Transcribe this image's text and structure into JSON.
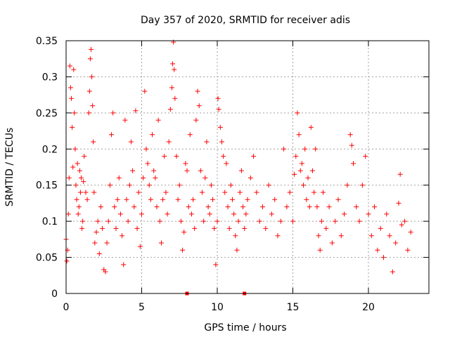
{
  "chart_data": {
    "type": "scatter",
    "title": "Day 357 of 2020, SRMTID for receiver adis",
    "xlabel": "GPS time / hours",
    "ylabel": "SRMTID / TECUs",
    "xlim": [
      0,
      24
    ],
    "ylim": [
      0,
      0.35
    ],
    "xticks": [
      0,
      5,
      10,
      15,
      20
    ],
    "xtick_labels": [
      "0",
      "5",
      "10",
      "15",
      "20"
    ],
    "yticks": [
      0,
      0.05,
      0.1,
      0.15,
      0.2,
      0.25,
      0.3,
      0.35
    ],
    "ytick_labels": [
      "0",
      "0.05",
      "0.1",
      "0.15",
      "0.2",
      "0.25",
      "0.3",
      "0.35"
    ],
    "grid": true,
    "marker": "+",
    "color": "#ff0000",
    "axis_markers": [
      8.0,
      11.8
    ],
    "series": [
      {
        "name": "SRMTID",
        "points": [
          [
            0.0,
            0.075
          ],
          [
            0.05,
            0.045
          ],
          [
            0.1,
            0.06
          ],
          [
            0.15,
            0.11
          ],
          [
            0.2,
            0.16
          ],
          [
            0.25,
            0.315
          ],
          [
            0.3,
            0.285
          ],
          [
            0.35,
            0.27
          ],
          [
            0.4,
            0.23
          ],
          [
            0.45,
            0.175
          ],
          [
            0.5,
            0.31
          ],
          [
            0.55,
            0.25
          ],
          [
            0.6,
            0.2
          ],
          [
            0.65,
            0.15
          ],
          [
            0.7,
            0.13
          ],
          [
            0.75,
            0.18
          ],
          [
            0.8,
            0.11
          ],
          [
            0.85,
            0.12
          ],
          [
            0.9,
            0.17
          ],
          [
            0.95,
            0.14
          ],
          [
            1.0,
            0.16
          ],
          [
            1.05,
            0.09
          ],
          [
            1.1,
            0.1
          ],
          [
            1.15,
            0.155
          ],
          [
            1.2,
            0.19
          ],
          [
            1.3,
            0.14
          ],
          [
            1.4,
            0.13
          ],
          [
            1.5,
            0.25
          ],
          [
            1.55,
            0.28
          ],
          [
            1.6,
            0.325
          ],
          [
            1.65,
            0.338
          ],
          [
            1.7,
            0.3
          ],
          [
            1.75,
            0.26
          ],
          [
            1.8,
            0.21
          ],
          [
            1.85,
            0.14
          ],
          [
            1.9,
            0.07
          ],
          [
            2.0,
            0.085
          ],
          [
            2.1,
            0.1
          ],
          [
            2.2,
            0.055
          ],
          [
            2.3,
            0.12
          ],
          [
            2.4,
            0.09
          ],
          [
            2.5,
            0.033
          ],
          [
            2.6,
            0.03
          ],
          [
            2.7,
            0.07
          ],
          [
            2.8,
            0.1
          ],
          [
            2.9,
            0.15
          ],
          [
            3.0,
            0.22
          ],
          [
            3.1,
            0.25
          ],
          [
            3.2,
            0.12
          ],
          [
            3.3,
            0.09
          ],
          [
            3.4,
            0.13
          ],
          [
            3.5,
            0.16
          ],
          [
            3.6,
            0.11
          ],
          [
            3.7,
            0.08
          ],
          [
            3.8,
            0.04
          ],
          [
            3.9,
            0.24
          ],
          [
            4.0,
            0.13
          ],
          [
            4.1,
            0.1
          ],
          [
            4.2,
            0.15
          ],
          [
            4.3,
            0.21
          ],
          [
            4.4,
            0.17
          ],
          [
            4.5,
            0.12
          ],
          [
            4.6,
            0.253
          ],
          [
            4.7,
            0.09
          ],
          [
            4.8,
            0.14
          ],
          [
            4.9,
            0.065
          ],
          [
            5.0,
            0.11
          ],
          [
            5.1,
            0.16
          ],
          [
            5.2,
            0.28
          ],
          [
            5.3,
            0.2
          ],
          [
            5.4,
            0.18
          ],
          [
            5.5,
            0.15
          ],
          [
            5.6,
            0.13
          ],
          [
            5.7,
            0.22
          ],
          [
            5.8,
            0.17
          ],
          [
            5.9,
            0.16
          ],
          [
            6.0,
            0.12
          ],
          [
            6.1,
            0.24
          ],
          [
            6.2,
            0.1
          ],
          [
            6.3,
            0.07
          ],
          [
            6.4,
            0.13
          ],
          [
            6.5,
            0.19
          ],
          [
            6.6,
            0.14
          ],
          [
            6.7,
            0.11
          ],
          [
            6.8,
            0.21
          ],
          [
            6.9,
            0.255
          ],
          [
            7.0,
            0.285
          ],
          [
            7.05,
            0.318
          ],
          [
            7.1,
            0.348
          ],
          [
            7.15,
            0.31
          ],
          [
            7.2,
            0.27
          ],
          [
            7.3,
            0.19
          ],
          [
            7.4,
            0.13
          ],
          [
            7.5,
            0.15
          ],
          [
            7.6,
            0.1
          ],
          [
            7.7,
            0.06
          ],
          [
            7.8,
            0.085
          ],
          [
            7.9,
            0.18
          ],
          [
            8.0,
            0.17
          ],
          [
            8.1,
            0.12
          ],
          [
            8.2,
            0.22
          ],
          [
            8.3,
            0.11
          ],
          [
            8.4,
            0.13
          ],
          [
            8.5,
            0.09
          ],
          [
            8.6,
            0.24
          ],
          [
            8.7,
            0.28
          ],
          [
            8.8,
            0.26
          ],
          [
            8.9,
            0.17
          ],
          [
            9.0,
            0.14
          ],
          [
            9.1,
            0.1
          ],
          [
            9.2,
            0.16
          ],
          [
            9.3,
            0.21
          ],
          [
            9.4,
            0.12
          ],
          [
            9.5,
            0.11
          ],
          [
            9.6,
            0.15
          ],
          [
            9.7,
            0.13
          ],
          [
            9.8,
            0.09
          ],
          [
            9.9,
            0.04
          ],
          [
            10.0,
            0.1
          ],
          [
            10.05,
            0.27
          ],
          [
            10.1,
            0.255
          ],
          [
            10.2,
            0.23
          ],
          [
            10.3,
            0.21
          ],
          [
            10.4,
            0.19
          ],
          [
            10.5,
            0.14
          ],
          [
            10.6,
            0.18
          ],
          [
            10.7,
            0.12
          ],
          [
            10.8,
            0.09
          ],
          [
            10.9,
            0.15
          ],
          [
            11.0,
            0.13
          ],
          [
            11.1,
            0.11
          ],
          [
            11.2,
            0.08
          ],
          [
            11.3,
            0.06
          ],
          [
            11.4,
            0.1
          ],
          [
            11.5,
            0.14
          ],
          [
            11.6,
            0.17
          ],
          [
            11.7,
            0.12
          ],
          [
            11.8,
            0.09
          ],
          [
            11.9,
            0.11
          ],
          [
            12.0,
            0.13
          ],
          [
            12.2,
            0.16
          ],
          [
            12.4,
            0.19
          ],
          [
            12.6,
            0.14
          ],
          [
            12.8,
            0.1
          ],
          [
            13.0,
            0.12
          ],
          [
            13.2,
            0.09
          ],
          [
            13.4,
            0.15
          ],
          [
            13.6,
            0.11
          ],
          [
            13.8,
            0.13
          ],
          [
            14.0,
            0.08
          ],
          [
            14.2,
            0.1
          ],
          [
            14.4,
            0.2
          ],
          [
            14.6,
            0.12
          ],
          [
            14.8,
            0.14
          ],
          [
            15.0,
            0.1
          ],
          [
            15.1,
            0.165
          ],
          [
            15.2,
            0.19
          ],
          [
            15.3,
            0.25
          ],
          [
            15.4,
            0.22
          ],
          [
            15.5,
            0.17
          ],
          [
            15.6,
            0.18
          ],
          [
            15.7,
            0.15
          ],
          [
            15.8,
            0.2
          ],
          [
            15.9,
            0.13
          ],
          [
            16.0,
            0.16
          ],
          [
            16.1,
            0.12
          ],
          [
            16.2,
            0.23
          ],
          [
            16.3,
            0.17
          ],
          [
            16.4,
            0.14
          ],
          [
            16.5,
            0.2
          ],
          [
            16.6,
            0.12
          ],
          [
            16.7,
            0.08
          ],
          [
            16.8,
            0.06
          ],
          [
            16.9,
            0.1
          ],
          [
            17.0,
            0.14
          ],
          [
            17.2,
            0.09
          ],
          [
            17.4,
            0.12
          ],
          [
            17.6,
            0.07
          ],
          [
            17.8,
            0.1
          ],
          [
            18.0,
            0.13
          ],
          [
            18.2,
            0.08
          ],
          [
            18.4,
            0.11
          ],
          [
            18.6,
            0.15
          ],
          [
            18.8,
            0.22
          ],
          [
            18.9,
            0.205
          ],
          [
            19.0,
            0.18
          ],
          [
            19.2,
            0.12
          ],
          [
            19.4,
            0.1
          ],
          [
            19.6,
            0.15
          ],
          [
            19.8,
            0.19
          ],
          [
            20.0,
            0.11
          ],
          [
            20.2,
            0.08
          ],
          [
            20.4,
            0.12
          ],
          [
            20.6,
            0.06
          ],
          [
            20.8,
            0.09
          ],
          [
            21.0,
            0.05
          ],
          [
            21.2,
            0.11
          ],
          [
            21.4,
            0.08
          ],
          [
            21.6,
            0.03
          ],
          [
            21.8,
            0.07
          ],
          [
            22.0,
            0.125
          ],
          [
            22.1,
            0.165
          ],
          [
            22.2,
            0.095
          ],
          [
            22.4,
            0.1
          ],
          [
            22.6,
            0.06
          ],
          [
            22.8,
            0.085
          ]
        ]
      }
    ]
  }
}
